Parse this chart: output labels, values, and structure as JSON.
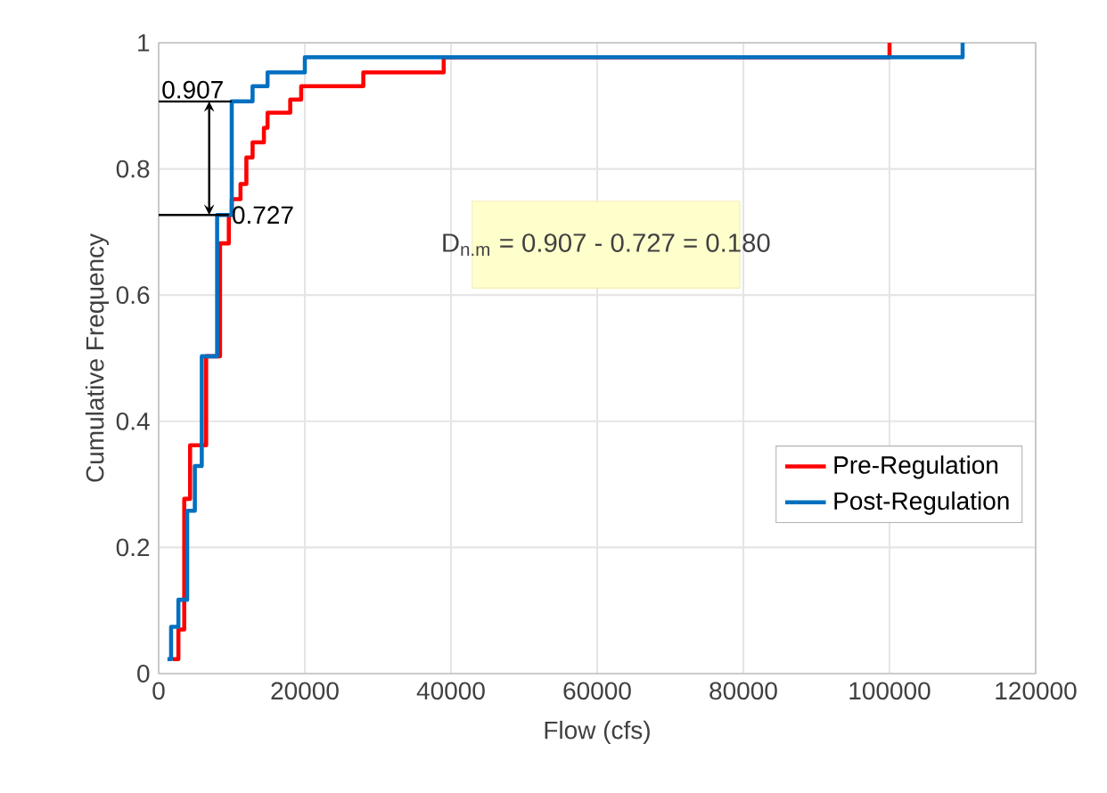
{
  "chart_data": {
    "type": "step",
    "xlabel": "Flow (cfs)",
    "ylabel": "Cumulative Frequency",
    "series": [
      {
        "name": "Pre-Regulation",
        "color": "#ff0000",
        "x": [
          1900,
          2700,
          3500,
          4300,
          6500,
          8400,
          9600,
          10000,
          11200,
          12000,
          12850,
          14400,
          14900,
          18000,
          19500,
          28000,
          39000,
          100000
        ],
        "values": [
          0.023,
          0.07,
          0.277,
          0.362,
          0.503,
          0.682,
          0.727,
          0.752,
          0.776,
          0.818,
          0.842,
          0.865,
          0.889,
          0.91,
          0.931,
          0.953,
          0.977,
          1
        ]
      },
      {
        "name": "Post-Regulation",
        "color": "#0070c0",
        "x": [
          1200,
          1700,
          2700,
          3900,
          4950,
          5900,
          8000,
          10000,
          12850,
          14900,
          20000,
          110000
        ],
        "values": [
          0.023,
          0.074,
          0.117,
          0.258,
          0.329,
          0.503,
          0.727,
          0.907,
          0.931,
          0.953,
          0.977,
          1
        ]
      }
    ],
    "xlim": [
      0,
      120000
    ],
    "ylim": [
      0,
      1
    ],
    "xticks": [
      0,
      20000,
      40000,
      60000,
      80000,
      100000,
      120000
    ],
    "yticks": [
      0,
      0.2,
      0.4,
      0.6,
      0.8,
      1
    ],
    "grid": true,
    "legend": "right",
    "line_style": "solid",
    "marker": "none",
    "annotations": [
      {
        "text": "0.907",
        "x": 10000,
        "y": 0.907
      },
      {
        "text": "0.727",
        "x": 9600,
        "y": 0.727
      },
      "D$_{n.m}$ = 0.907 - 0.727 = 0.180"
    ]
  }
}
